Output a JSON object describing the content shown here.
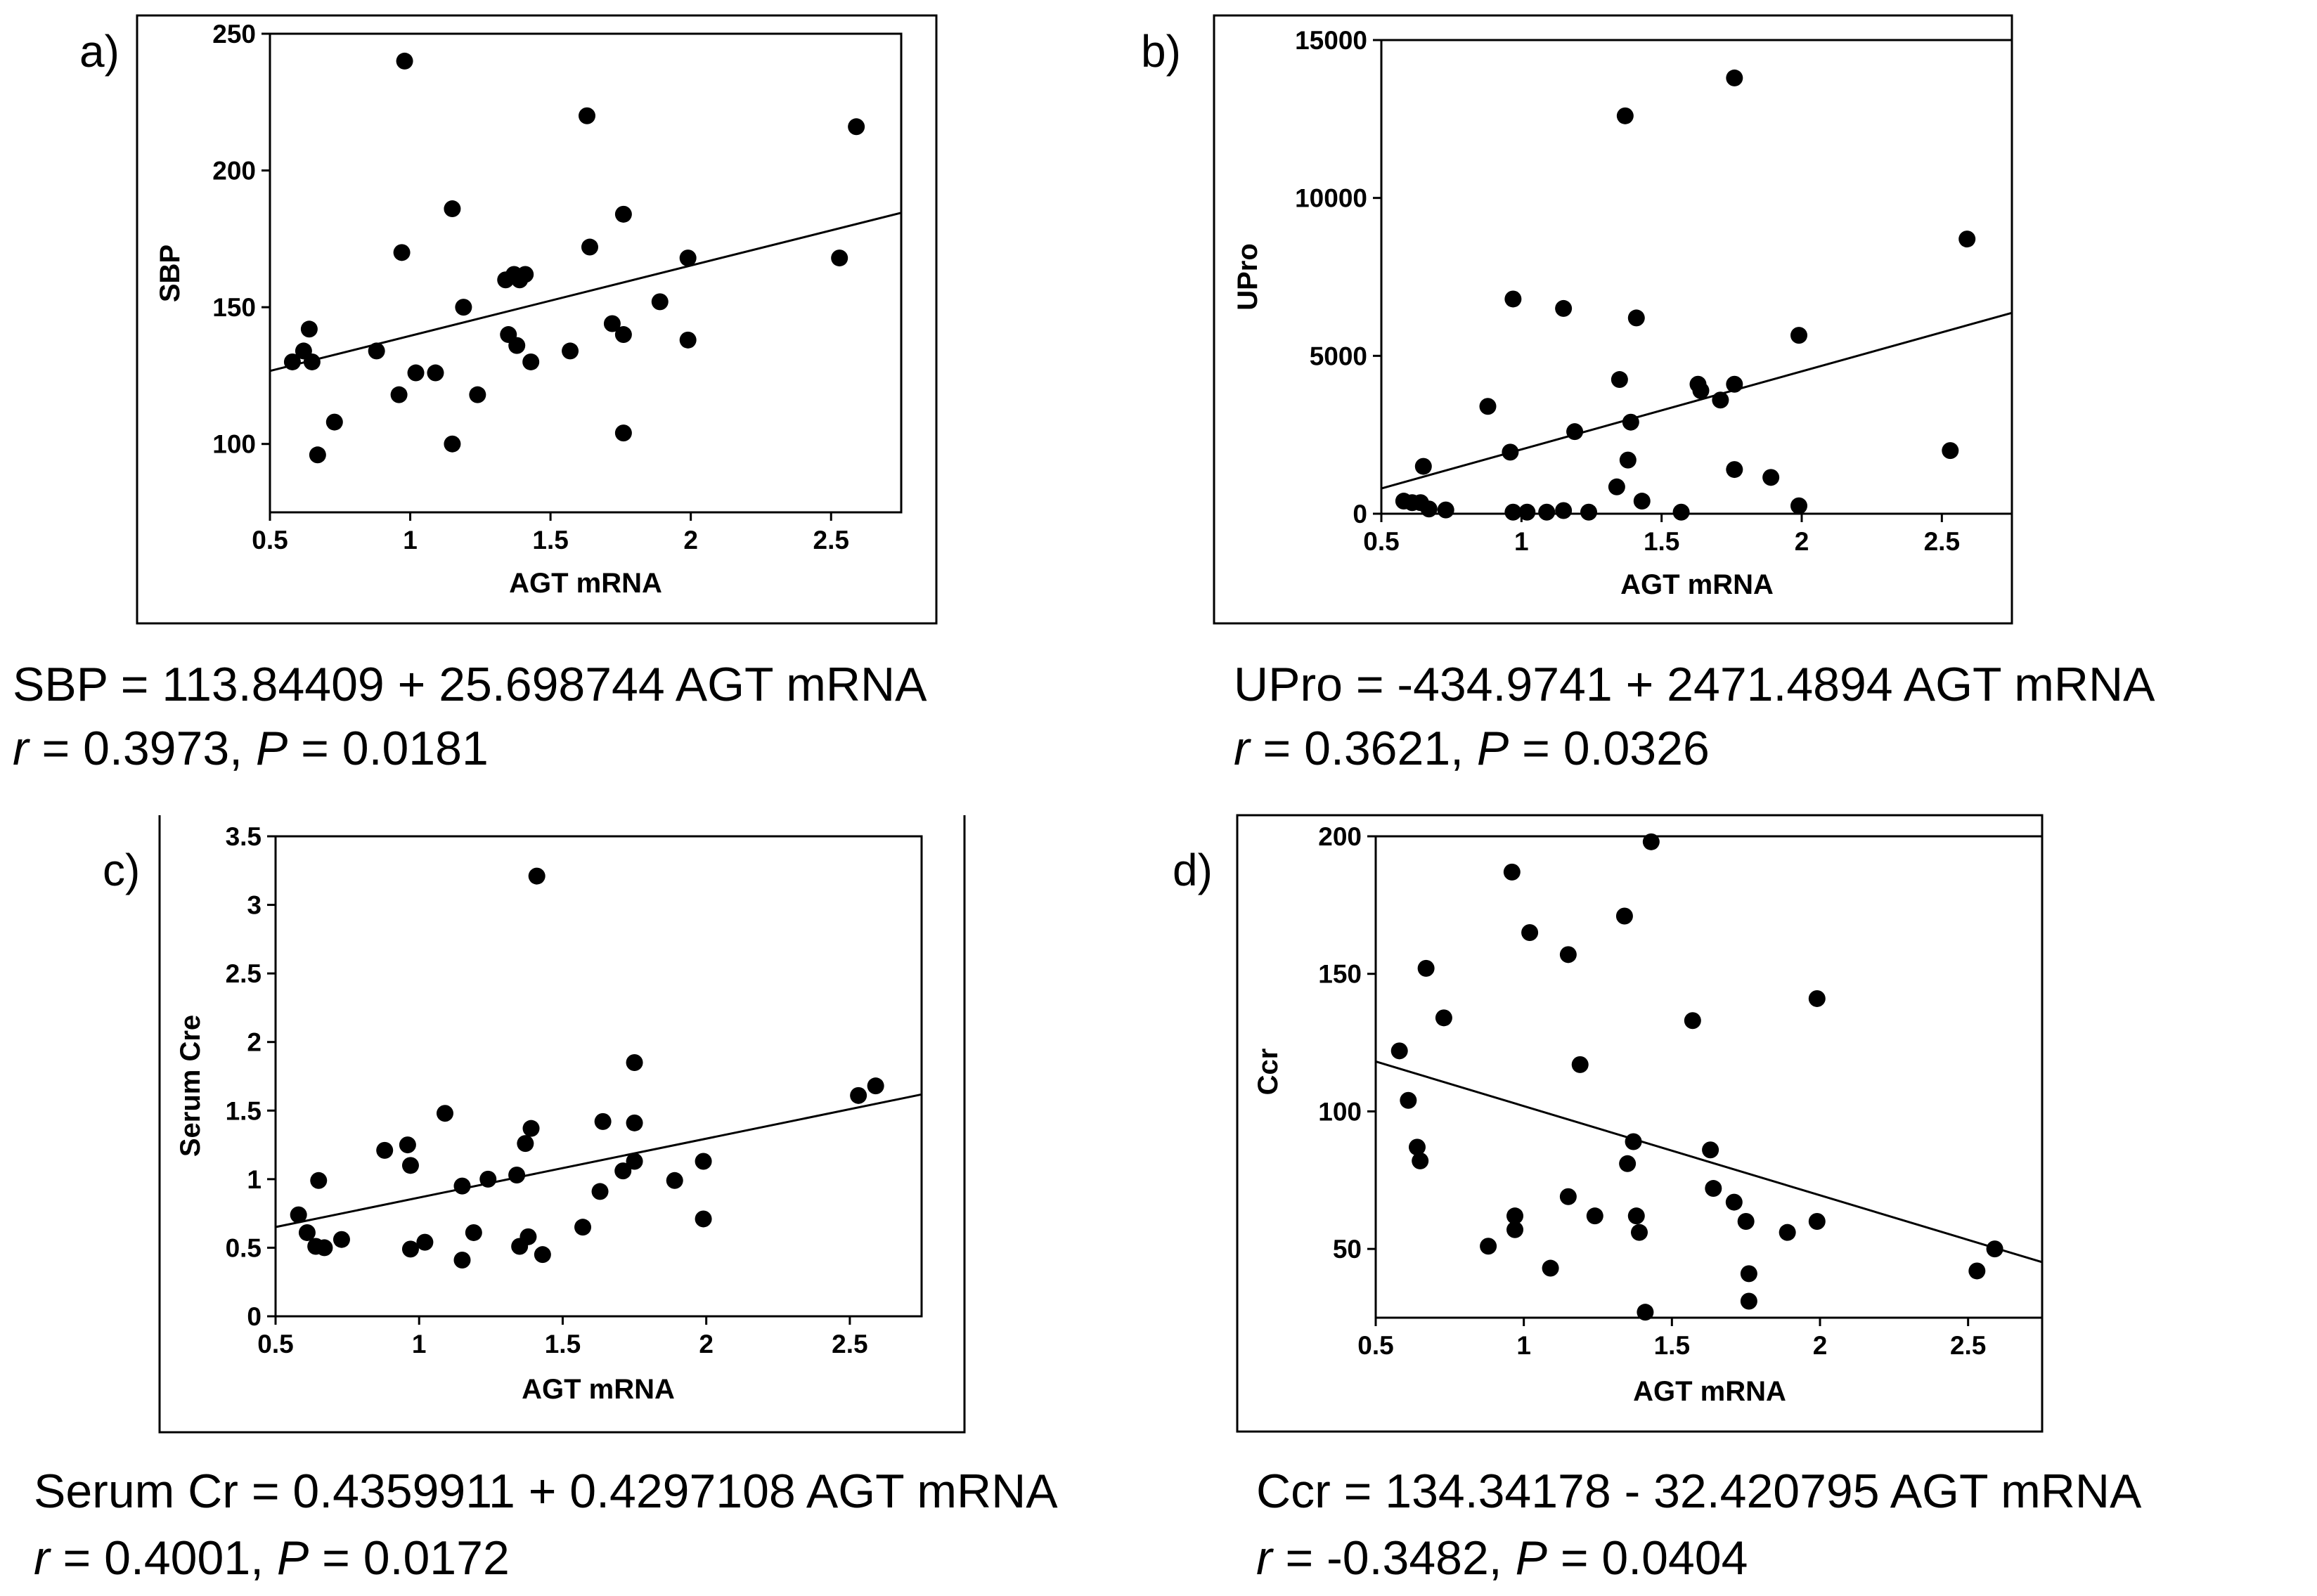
{
  "chart_data": [
    {
      "type": "scatter",
      "panel_label": "a)",
      "xlabel": "AGT mRNA",
      "ylabel": "SBP",
      "xlim": [
        0.5,
        2.75
      ],
      "ylim": [
        75,
        250
      ],
      "xticks": [
        "0.5",
        "1",
        "1.5",
        "2",
        "2.5"
      ],
      "yticks": [
        "100",
        "150",
        "200",
        "250"
      ],
      "points": [
        [
          0.58,
          130
        ],
        [
          0.62,
          134
        ],
        [
          0.64,
          142
        ],
        [
          0.65,
          130
        ],
        [
          0.67,
          96
        ],
        [
          0.73,
          108
        ],
        [
          0.88,
          134
        ],
        [
          0.96,
          118
        ],
        [
          0.97,
          170
        ],
        [
          0.98,
          240
        ],
        [
          1.02,
          126
        ],
        [
          1.09,
          126
        ],
        [
          1.15,
          186
        ],
        [
          1.15,
          100
        ],
        [
          1.19,
          150
        ],
        [
          1.24,
          118
        ],
        [
          1.34,
          160
        ],
        [
          1.35,
          140
        ],
        [
          1.37,
          162
        ],
        [
          1.38,
          136
        ],
        [
          1.39,
          160
        ],
        [
          1.41,
          162
        ],
        [
          1.43,
          130
        ],
        [
          1.57,
          134
        ],
        [
          1.63,
          220
        ],
        [
          1.64,
          172
        ],
        [
          1.72,
          144
        ],
        [
          1.76,
          140
        ],
        [
          1.76,
          184
        ],
        [
          1.76,
          104
        ],
        [
          1.89,
          152
        ],
        [
          1.99,
          168
        ],
        [
          1.99,
          138
        ],
        [
          2.53,
          168
        ],
        [
          2.59,
          216
        ]
      ],
      "fit": {
        "intercept": 113.84409,
        "slope": 25.698744
      },
      "equation": "SBP = 113.84409 + 25.698744 AGT mRNA",
      "r_label": "r",
      "r_value": " = 0.3973, ",
      "p_label": "P",
      "p_value": " = 0.0181"
    },
    {
      "type": "scatter",
      "panel_label": "b)",
      "xlabel": "AGT mRNA",
      "ylabel": "UPro",
      "xlim": [
        0.5,
        2.75
      ],
      "ylim": [
        0,
        15000
      ],
      "xticks": [
        "0.5",
        "1",
        "1.5",
        "2",
        "2.5"
      ],
      "yticks": [
        "0",
        "5000",
        "10000",
        "15000"
      ],
      "points": [
        [
          0.58,
          400
        ],
        [
          0.61,
          350
        ],
        [
          0.64,
          350
        ],
        [
          0.65,
          1500
        ],
        [
          0.67,
          150
        ],
        [
          0.73,
          120
        ],
        [
          0.88,
          3400
        ],
        [
          0.96,
          1950
        ],
        [
          0.97,
          6800
        ],
        [
          0.97,
          50
        ],
        [
          1.02,
          50
        ],
        [
          1.09,
          50
        ],
        [
          1.15,
          6500
        ],
        [
          1.15,
          100
        ],
        [
          1.19,
          2600
        ],
        [
          1.24,
          50
        ],
        [
          1.34,
          850
        ],
        [
          1.35,
          4250
        ],
        [
          1.37,
          12600
        ],
        [
          1.38,
          1700
        ],
        [
          1.39,
          2900
        ],
        [
          1.41,
          6200
        ],
        [
          1.43,
          400
        ],
        [
          1.57,
          50
        ],
        [
          1.63,
          4100
        ],
        [
          1.64,
          3900
        ],
        [
          1.71,
          3600
        ],
        [
          1.76,
          13800
        ],
        [
          1.76,
          1400
        ],
        [
          1.76,
          4100
        ],
        [
          1.89,
          1150
        ],
        [
          1.99,
          5650
        ],
        [
          1.99,
          250
        ],
        [
          2.53,
          2000
        ],
        [
          2.59,
          8700
        ]
      ],
      "fit": {
        "intercept": -434.9741,
        "slope": 2471.4894
      },
      "equation": "UPro = -434.9741 + 2471.4894 AGT mRNA",
      "r_label": "r",
      "r_value": " = 0.3621, ",
      "p_label": "P",
      "p_value": " = 0.0326"
    },
    {
      "type": "scatter",
      "panel_label": "c)",
      "xlabel": "AGT mRNA",
      "ylabel": "Serum Cre",
      "xlim": [
        0.5,
        2.75
      ],
      "ylim": [
        0,
        3.5
      ],
      "xticks": [
        "0.5",
        "1",
        "1.5",
        "2",
        "2.5"
      ],
      "yticks": [
        "0",
        "0.5",
        "1",
        "1.5",
        "2",
        "2.5",
        "3",
        "3.5"
      ],
      "points": [
        [
          0.58,
          0.74
        ],
        [
          0.61,
          0.61
        ],
        [
          0.64,
          0.51
        ],
        [
          0.65,
          0.99
        ],
        [
          0.67,
          0.5
        ],
        [
          0.73,
          0.56
        ],
        [
          0.88,
          1.21
        ],
        [
          0.96,
          1.25
        ],
        [
          0.97,
          1.1
        ],
        [
          0.97,
          0.49
        ],
        [
          1.02,
          0.54
        ],
        [
          1.09,
          1.48
        ],
        [
          1.15,
          0.95
        ],
        [
          1.15,
          0.41
        ],
        [
          1.19,
          0.61
        ],
        [
          1.24,
          1.0
        ],
        [
          1.34,
          1.03
        ],
        [
          1.35,
          0.51
        ],
        [
          1.37,
          1.26
        ],
        [
          1.38,
          0.58
        ],
        [
          1.39,
          1.37
        ],
        [
          1.41,
          3.21
        ],
        [
          1.43,
          0.45
        ],
        [
          1.57,
          0.65
        ],
        [
          1.63,
          0.91
        ],
        [
          1.64,
          1.42
        ],
        [
          1.71,
          1.06
        ],
        [
          1.75,
          1.85
        ],
        [
          1.75,
          1.41
        ],
        [
          1.75,
          1.13
        ],
        [
          1.89,
          0.99
        ],
        [
          1.99,
          1.13
        ],
        [
          1.99,
          0.71
        ],
        [
          2.53,
          1.61
        ],
        [
          2.59,
          1.68
        ]
      ],
      "fit": {
        "intercept": 0.4359911,
        "slope": 0.4297108
      },
      "equation": "Serum Cr = 0.4359911 + 0.4297108 AGT mRNA",
      "r_label": "r",
      "r_value": " = 0.4001, ",
      "p_label": "P",
      "p_value": " = 0.0172"
    },
    {
      "type": "scatter",
      "panel_label": "d)",
      "xlabel": "AGT mRNA",
      "ylabel": "Ccr",
      "xlim": [
        0.5,
        2.75
      ],
      "ylim": [
        25,
        200
      ],
      "xticks": [
        "0.5",
        "1",
        "1.5",
        "2",
        "2.5"
      ],
      "yticks": [
        "50",
        "100",
        "150",
        "200"
      ],
      "points": [
        [
          0.58,
          122
        ],
        [
          0.61,
          104
        ],
        [
          0.64,
          87
        ],
        [
          0.65,
          82
        ],
        [
          0.67,
          152
        ],
        [
          0.73,
          134
        ],
        [
          0.88,
          51
        ],
        [
          0.96,
          187
        ],
        [
          0.97,
          62
        ],
        [
          0.97,
          57
        ],
        [
          1.02,
          165
        ],
        [
          1.09,
          43
        ],
        [
          1.15,
          69
        ],
        [
          1.15,
          157
        ],
        [
          1.19,
          117
        ],
        [
          1.24,
          62
        ],
        [
          1.34,
          171
        ],
        [
          1.35,
          81
        ],
        [
          1.37,
          89
        ],
        [
          1.38,
          62
        ],
        [
          1.39,
          56
        ],
        [
          1.41,
          27
        ],
        [
          1.43,
          198
        ],
        [
          1.57,
          133
        ],
        [
          1.63,
          86
        ],
        [
          1.64,
          72
        ],
        [
          1.71,
          67
        ],
        [
          1.75,
          60
        ],
        [
          1.76,
          41
        ],
        [
          1.76,
          31
        ],
        [
          1.89,
          56
        ],
        [
          1.99,
          141
        ],
        [
          1.99,
          60
        ],
        [
          2.53,
          42
        ],
        [
          2.59,
          50
        ]
      ],
      "fit": {
        "intercept": 134.34178,
        "slope": -32.420795
      },
      "equation": "Ccr = 134.34178 - 32.420795 AGT mRNA",
      "r_label": "r",
      "r_value": " = -0.3482, ",
      "p_label": "P",
      "p_value": " = 0.0404"
    }
  ]
}
